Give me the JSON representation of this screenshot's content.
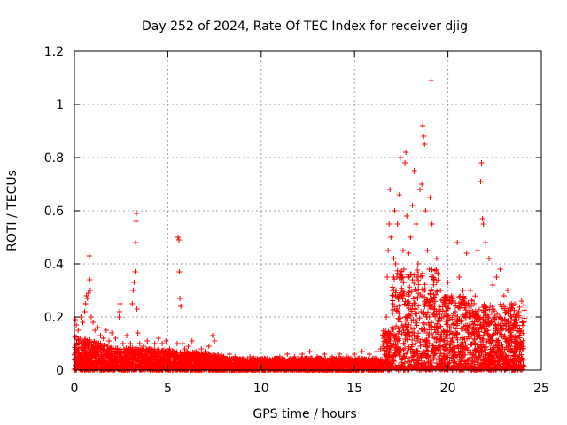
{
  "chart_data": {
    "type": "scatter",
    "title": "Day 252 of 2024, Rate Of TEC Index for receiver djig",
    "xlabel": "GPS time / hours",
    "ylabel": "ROTI / TECUs",
    "xlim": [
      0,
      25
    ],
    "ylim": [
      0,
      1.2
    ],
    "xticks": [
      0,
      5,
      10,
      15,
      20,
      25
    ],
    "xtick_labels": [
      "0",
      "5",
      "10",
      "15",
      "20",
      "25"
    ],
    "yticks": [
      0,
      0.2,
      0.4,
      0.6,
      0.8,
      1.0,
      1.2
    ],
    "ytick_labels": [
      "0",
      "0.2",
      "0.4",
      "0.6",
      "0.8",
      "1",
      "1.2"
    ],
    "grid": true,
    "marker": "+",
    "series": [
      {
        "name": "ROTI",
        "color": "#ff0000",
        "points": [
          [
            0.05,
            0.19
          ],
          [
            0.1,
            0.17
          ],
          [
            0.2,
            0.15
          ],
          [
            0.3,
            0.12
          ],
          [
            0.35,
            0.2
          ],
          [
            0.45,
            0.18
          ],
          [
            0.55,
            0.22
          ],
          [
            0.6,
            0.25
          ],
          [
            0.65,
            0.28
          ],
          [
            0.7,
            0.27
          ],
          [
            0.75,
            0.29
          ],
          [
            0.8,
            0.43
          ],
          [
            0.82,
            0.34
          ],
          [
            0.85,
            0.3
          ],
          [
            0.9,
            0.2
          ],
          [
            1.0,
            0.18
          ],
          [
            1.1,
            0.15
          ],
          [
            1.25,
            0.16
          ],
          [
            1.4,
            0.13
          ],
          [
            1.55,
            0.12
          ],
          [
            1.7,
            0.15
          ],
          [
            1.85,
            0.11
          ],
          [
            2.0,
            0.14
          ],
          [
            2.2,
            0.12
          ],
          [
            2.4,
            0.2
          ],
          [
            2.42,
            0.22
          ],
          [
            2.45,
            0.25
          ],
          [
            2.6,
            0.1
          ],
          [
            2.8,
            0.13
          ],
          [
            3.0,
            0.1
          ],
          [
            3.1,
            0.25
          ],
          [
            3.15,
            0.3
          ],
          [
            3.2,
            0.33
          ],
          [
            3.25,
            0.37
          ],
          [
            3.28,
            0.48
          ],
          [
            3.3,
            0.56
          ],
          [
            3.32,
            0.59
          ],
          [
            3.35,
            0.23
          ],
          [
            3.4,
            0.14
          ],
          [
            3.5,
            0.1
          ],
          [
            3.7,
            0.09
          ],
          [
            3.9,
            0.11
          ],
          [
            4.1,
            0.08
          ],
          [
            4.3,
            0.1
          ],
          [
            4.5,
            0.12
          ],
          [
            4.7,
            0.1
          ],
          [
            4.9,
            0.11
          ],
          [
            5.1,
            0.08
          ],
          [
            5.3,
            0.07
          ],
          [
            5.5,
            0.1
          ],
          [
            5.55,
            0.5
          ],
          [
            5.6,
            0.49
          ],
          [
            5.62,
            0.37
          ],
          [
            5.65,
            0.27
          ],
          [
            5.7,
            0.24
          ],
          [
            5.8,
            0.1
          ],
          [
            5.9,
            0.08
          ],
          [
            6.1,
            0.09
          ],
          [
            6.3,
            0.11
          ],
          [
            6.5,
            0.07
          ],
          [
            6.8,
            0.08
          ],
          [
            7.0,
            0.07
          ],
          [
            7.2,
            0.09
          ],
          [
            7.4,
            0.13
          ],
          [
            7.5,
            0.11
          ],
          [
            7.7,
            0.06
          ],
          [
            8.0,
            0.05
          ],
          [
            8.3,
            0.06
          ],
          [
            8.6,
            0.05
          ],
          [
            9.0,
            0.04
          ],
          [
            9.4,
            0.05
          ],
          [
            9.8,
            0.04
          ],
          [
            10.2,
            0.03
          ],
          [
            10.6,
            0.04
          ],
          [
            11.0,
            0.05
          ],
          [
            11.4,
            0.06
          ],
          [
            11.8,
            0.05
          ],
          [
            12.2,
            0.06
          ],
          [
            12.6,
            0.07
          ],
          [
            13.0,
            0.05
          ],
          [
            13.4,
            0.06
          ],
          [
            13.8,
            0.05
          ],
          [
            14.2,
            0.06
          ],
          [
            14.6,
            0.05
          ],
          [
            15.0,
            0.06
          ],
          [
            15.4,
            0.07
          ],
          [
            15.8,
            0.06
          ],
          [
            16.2,
            0.07
          ],
          [
            16.4,
            0.08
          ],
          [
            16.6,
            0.12
          ],
          [
            16.7,
            0.2
          ],
          [
            16.75,
            0.35
          ],
          [
            16.8,
            0.45
          ],
          [
            16.85,
            0.55
          ],
          [
            16.9,
            0.68
          ],
          [
            16.95,
            0.5
          ],
          [
            17.0,
            0.3
          ],
          [
            17.05,
            0.25
          ],
          [
            17.1,
            0.42
          ],
          [
            17.15,
            0.6
          ],
          [
            17.2,
            0.4
          ],
          [
            17.3,
            0.55
          ],
          [
            17.4,
            0.66
          ],
          [
            17.45,
            0.8
          ],
          [
            17.5,
            0.35
          ],
          [
            17.6,
            0.45
          ],
          [
            17.7,
            0.78
          ],
          [
            17.75,
            0.82
          ],
          [
            17.8,
            0.58
          ],
          [
            17.9,
            0.44
          ],
          [
            18.0,
            0.5
          ],
          [
            18.1,
            0.62
          ],
          [
            18.2,
            0.75
          ],
          [
            18.3,
            0.55
          ],
          [
            18.4,
            0.4
          ],
          [
            18.5,
            0.68
          ],
          [
            18.6,
            0.7
          ],
          [
            18.65,
            0.92
          ],
          [
            18.7,
            0.88
          ],
          [
            18.75,
            0.85
          ],
          [
            18.8,
            0.6
          ],
          [
            18.9,
            0.45
          ],
          [
            19.0,
            0.38
          ],
          [
            19.05,
            0.65
          ],
          [
            19.1,
            1.09
          ],
          [
            19.15,
            0.55
          ],
          [
            19.2,
            0.35
          ],
          [
            19.4,
            0.42
          ],
          [
            19.6,
            0.3
          ],
          [
            19.8,
            0.25
          ],
          [
            20.0,
            0.33
          ],
          [
            20.2,
            0.28
          ],
          [
            20.4,
            0.22
          ],
          [
            20.5,
            0.48
          ],
          [
            20.6,
            0.35
          ],
          [
            20.8,
            0.3
          ],
          [
            21.0,
            0.44
          ],
          [
            21.2,
            0.3
          ],
          [
            21.4,
            0.25
          ],
          [
            21.6,
            0.45
          ],
          [
            21.75,
            0.71
          ],
          [
            21.8,
            0.78
          ],
          [
            21.85,
            0.57
          ],
          [
            21.9,
            0.55
          ],
          [
            22.0,
            0.48
          ],
          [
            22.2,
            0.42
          ],
          [
            22.4,
            0.32
          ],
          [
            22.6,
            0.35
          ],
          [
            22.8,
            0.38
          ],
          [
            23.0,
            0.28
          ],
          [
            23.2,
            0.3
          ],
          [
            23.4,
            0.25
          ],
          [
            23.6,
            0.2
          ],
          [
            23.8,
            0.22
          ],
          [
            23.95,
            0.26
          ]
        ]
      }
    ]
  }
}
